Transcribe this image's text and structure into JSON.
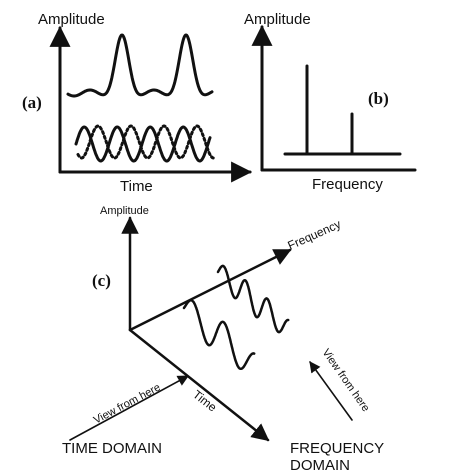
{
  "panel_a": {
    "tag": "(a)",
    "y_label": "Amplitude",
    "x_label": "Time"
  },
  "panel_b": {
    "tag": "(b)",
    "y_label": "Amplitude",
    "x_label": "Frequency"
  },
  "panel_c": {
    "tag": "(c)",
    "amplitude_label": "Amplitude",
    "frequency_label": "Frequency",
    "time_label": "Time",
    "view_time_label": "View from here",
    "view_freq_label": "View from here",
    "time_domain_label": "TIME DOMAIN",
    "frequency_domain_line1": "FREQUENCY",
    "frequency_domain_line2": "DOMAIN"
  },
  "colors": {
    "ink": "#111111",
    "background": "#ffffff"
  }
}
